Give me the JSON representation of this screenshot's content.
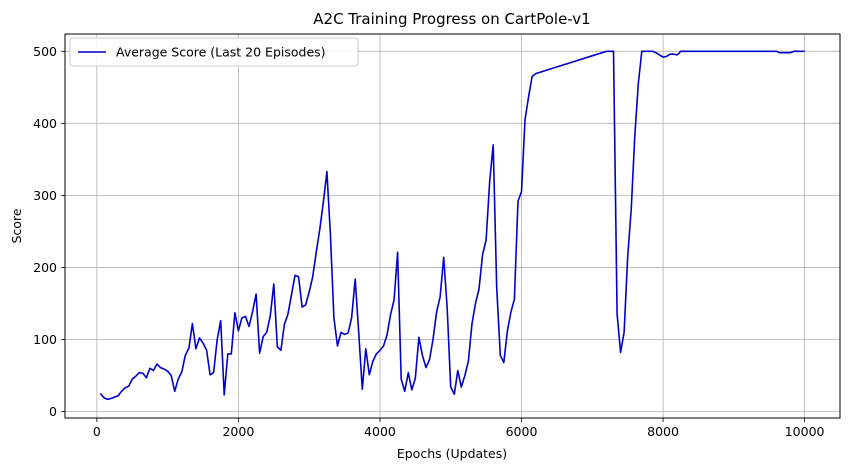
{
  "chart_data": {
    "type": "line",
    "title": "A2C Training Progress on CartPole-v1",
    "xlabel": "Epochs (Updates)",
    "ylabel": "Score",
    "xlim": [
      -450,
      10500
    ],
    "ylim": [
      -9,
      524
    ],
    "xticks": [
      0,
      2000,
      4000,
      6000,
      8000,
      10000
    ],
    "yticks": [
      0,
      100,
      200,
      300,
      400,
      500
    ],
    "grid": true,
    "legend_position": "top-left",
    "series": [
      {
        "name": "Average Score (Last 20 Episodes)",
        "color": "#0000cc",
        "x": [
          50,
          100,
          150,
          200,
          250,
          300,
          350,
          400,
          450,
          500,
          550,
          600,
          650,
          700,
          750,
          800,
          850,
          900,
          950,
          1000,
          1050,
          1100,
          1150,
          1200,
          1250,
          1300,
          1350,
          1400,
          1450,
          1500,
          1550,
          1600,
          1650,
          1700,
          1750,
          1800,
          1850,
          1900,
          1950,
          2000,
          2050,
          2100,
          2150,
          2200,
          2250,
          2300,
          2350,
          2400,
          2450,
          2500,
          2550,
          2600,
          2650,
          2700,
          2750,
          2800,
          2850,
          2900,
          2950,
          3000,
          3050,
          3100,
          3150,
          3200,
          3250,
          3300,
          3350,
          3400,
          3450,
          3500,
          3550,
          3600,
          3650,
          3700,
          3750,
          3800,
          3850,
          3900,
          3950,
          4000,
          4050,
          4100,
          4150,
          4200,
          4250,
          4300,
          4350,
          4400,
          4450,
          4500,
          4550,
          4600,
          4650,
          4700,
          4750,
          4800,
          4850,
          4900,
          4950,
          5000,
          5050,
          5100,
          5150,
          5200,
          5250,
          5300,
          5350,
          5400,
          5450,
          5500,
          5550,
          5600,
          5650,
          5700,
          5750,
          5800,
          5850,
          5900,
          5950,
          6000,
          6050,
          6100,
          6150,
          6200,
          7200,
          7250,
          7300,
          7350,
          7400,
          7450,
          7500,
          7550,
          7600,
          7650,
          7700,
          7750,
          7800,
          7850,
          7900,
          7950,
          8000,
          8050,
          8100,
          8150,
          8200,
          8250,
          8300,
          9500,
          9550,
          9600,
          9650,
          9700,
          9750,
          9800,
          9850,
          9900,
          9950,
          10000
        ],
        "values": [
          25,
          19,
          17,
          18,
          20,
          22,
          28,
          33,
          35,
          45,
          49,
          54,
          53,
          47,
          60,
          57,
          66,
          61,
          59,
          56,
          50,
          28,
          45,
          55,
          78,
          88,
          122,
          87,
          102,
          95,
          85,
          51,
          54,
          100,
          126,
          23,
          80,
          80,
          137,
          112,
          130,
          132,
          118,
          139,
          163,
          81,
          104,
          110,
          133,
          177,
          90,
          85,
          121,
          135,
          162,
          189,
          187,
          145,
          148,
          166,
          187,
          222,
          253,
          290,
          333,
          246,
          130,
          91,
          110,
          107,
          109,
          130,
          184,
          110,
          31,
          87,
          51,
          70,
          80,
          85,
          91,
          106,
          135,
          155,
          221,
          45,
          28,
          54,
          30,
          46,
          103,
          78,
          61,
          72,
          100,
          138,
          159,
          214,
          143,
          34,
          24,
          57,
          34,
          50,
          70,
          122,
          150,
          170,
          218,
          238,
          320,
          370,
          172,
          78,
          68,
          112,
          138,
          156,
          292,
          305,
          405,
          437,
          465,
          469,
          500,
          500,
          500,
          135,
          82,
          110,
          215,
          280,
          380,
          455,
          500,
          500,
          500,
          500,
          498,
          495,
          492,
          493,
          496,
          496,
          495,
          500,
          500,
          500,
          500,
          500,
          498,
          498,
          498,
          498,
          500,
          500,
          500,
          500
        ]
      }
    ]
  }
}
